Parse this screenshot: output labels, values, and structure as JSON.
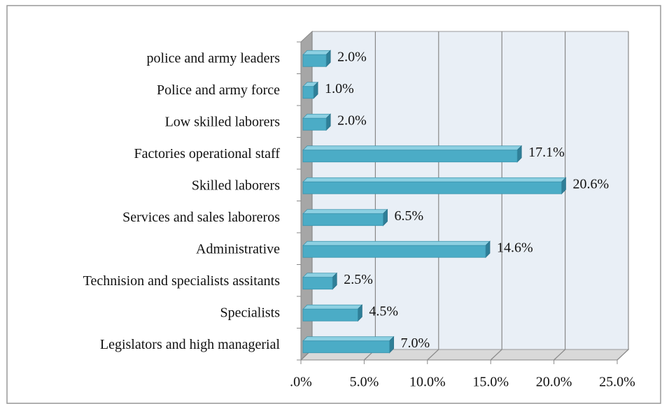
{
  "chart_data": {
    "type": "bar3d_horizontal",
    "categories": [
      "police and army leaders",
      "Police and army force",
      "Low skilled laborers",
      "Factories operational staff",
      "Skilled laborers",
      "Services and sales laboreros",
      "Administrative",
      "Technision and specialists assitants",
      "Specialists",
      "Legislators and high managerial"
    ],
    "values": [
      2.0,
      1.0,
      2.0,
      17.1,
      20.6,
      6.5,
      14.6,
      2.5,
      4.5,
      7.0
    ],
    "value_labels": [
      "2.0%",
      "1.0%",
      "2.0%",
      "17.1%",
      "20.6%",
      "6.5%",
      "14.6%",
      "2.5%",
      "4.5%",
      "7.0%"
    ],
    "color": "#4bacc6",
    "xlim": [
      0,
      25
    ],
    "xticks": [
      {
        "value": 0,
        "label": ".0%"
      },
      {
        "value": 5,
        "label": "5.0%"
      },
      {
        "value": 10,
        "label": "10.0%"
      },
      {
        "value": 15,
        "label": "15.0%"
      },
      {
        "value": 20,
        "label": "20.0%"
      },
      {
        "value": 25,
        "label": "25.0%"
      }
    ],
    "grid": true
  }
}
